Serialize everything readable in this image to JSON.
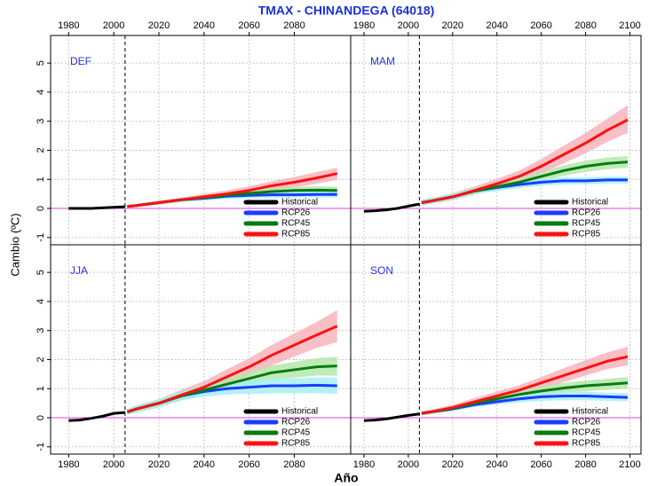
{
  "figure": {
    "title": "TMAX  - CHINANDEGA (64018)",
    "x_label": "Año",
    "y_label": "Cambio (ºC)"
  },
  "chart_data": [
    {
      "type": "line",
      "title": "DEF",
      "xlim": [
        1972,
        2105
      ],
      "ylim": [
        -1.25,
        5.95
      ],
      "xticks": [
        1980,
        2000,
        2020,
        2040,
        2060,
        2080
      ],
      "yticks": [
        -1,
        0,
        1,
        2,
        3,
        4,
        5
      ],
      "x_axis_side": "top",
      "show_ytick_labels": true,
      "grid": true,
      "hline": 0,
      "vline": 2005,
      "legend": "bottomright",
      "series": [
        {
          "name": "Historical",
          "color": "#000000",
          "x": [
            1980,
            1985,
            1990,
            1995,
            2000,
            2005
          ],
          "values": [
            0,
            0,
            0,
            0.02,
            0.04,
            0.06
          ]
        },
        {
          "name": "RCP26",
          "color": "#1a3cff",
          "band_color": "#a6eef2",
          "x": [
            2006,
            2010,
            2020,
            2030,
            2040,
            2050,
            2060,
            2070,
            2080,
            2090,
            2099
          ],
          "values": [
            0.07,
            0.1,
            0.2,
            0.3,
            0.35,
            0.42,
            0.45,
            0.47,
            0.47,
            0.48,
            0.48
          ],
          "lower": [
            0.03,
            0.05,
            0.14,
            0.23,
            0.27,
            0.33,
            0.35,
            0.37,
            0.37,
            0.38,
            0.38
          ],
          "upper": [
            0.11,
            0.15,
            0.26,
            0.37,
            0.43,
            0.51,
            0.55,
            0.57,
            0.57,
            0.58,
            0.58
          ]
        },
        {
          "name": "RCP45",
          "color": "#0a7a12",
          "band_color": "#b4e8aa",
          "x": [
            2006,
            2010,
            2020,
            2030,
            2040,
            2050,
            2060,
            2070,
            2080,
            2090,
            2099
          ],
          "values": [
            0.07,
            0.1,
            0.2,
            0.3,
            0.38,
            0.45,
            0.52,
            0.58,
            0.62,
            0.63,
            0.62
          ],
          "lower": [
            0.03,
            0.05,
            0.14,
            0.23,
            0.3,
            0.36,
            0.42,
            0.47,
            0.5,
            0.51,
            0.5
          ],
          "upper": [
            0.11,
            0.15,
            0.26,
            0.37,
            0.46,
            0.55,
            0.62,
            0.69,
            0.74,
            0.76,
            0.75
          ]
        },
        {
          "name": "RCP85",
          "color": "#ff1010",
          "band_color": "#f7b4bc",
          "x": [
            2006,
            2010,
            2020,
            2030,
            2040,
            2050,
            2060,
            2070,
            2080,
            2090,
            2099
          ],
          "values": [
            0.07,
            0.1,
            0.2,
            0.3,
            0.4,
            0.5,
            0.62,
            0.78,
            0.9,
            1.05,
            1.2
          ],
          "lower": [
            0.03,
            0.05,
            0.13,
            0.22,
            0.3,
            0.38,
            0.48,
            0.62,
            0.72,
            0.85,
            0.98
          ],
          "upper": [
            0.11,
            0.15,
            0.27,
            0.38,
            0.5,
            0.62,
            0.76,
            0.94,
            1.08,
            1.25,
            1.4
          ]
        }
      ]
    },
    {
      "type": "line",
      "title": "MAM",
      "xlim": [
        1974,
        2105
      ],
      "ylim": [
        -1.25,
        5.95
      ],
      "xticks": [
        1980,
        2000,
        2020,
        2040,
        2060,
        2080,
        2100
      ],
      "yticks": [
        -1,
        0,
        1,
        2,
        3,
        4,
        5
      ],
      "x_axis_side": "top",
      "show_ytick_labels": false,
      "grid": true,
      "hline": 0,
      "vline": 2005,
      "legend": "bottomright",
      "series": [
        {
          "name": "Historical",
          "color": "#000000",
          "x": [
            1980,
            1985,
            1990,
            1995,
            2000,
            2005
          ],
          "values": [
            -0.1,
            -0.08,
            -0.05,
            0,
            0.08,
            0.15
          ]
        },
        {
          "name": "RCP26",
          "color": "#1a3cff",
          "band_color": "#a6eef2",
          "x": [
            2006,
            2010,
            2020,
            2030,
            2040,
            2050,
            2060,
            2070,
            2080,
            2090,
            2099
          ],
          "values": [
            0.2,
            0.25,
            0.4,
            0.6,
            0.72,
            0.82,
            0.9,
            0.95,
            0.95,
            0.98,
            0.98
          ],
          "lower": [
            0.1,
            0.15,
            0.3,
            0.5,
            0.6,
            0.7,
            0.78,
            0.83,
            0.83,
            0.86,
            0.86
          ],
          "upper": [
            0.3,
            0.35,
            0.5,
            0.7,
            0.84,
            0.94,
            1.02,
            1.07,
            1.07,
            1.1,
            1.1
          ]
        },
        {
          "name": "RCP45",
          "color": "#0a7a12",
          "band_color": "#b4e8aa",
          "x": [
            2006,
            2010,
            2020,
            2030,
            2040,
            2050,
            2060,
            2070,
            2080,
            2090,
            2099
          ],
          "values": [
            0.2,
            0.25,
            0.4,
            0.6,
            0.75,
            0.9,
            1.1,
            1.3,
            1.45,
            1.55,
            1.6
          ],
          "lower": [
            0.1,
            0.15,
            0.3,
            0.5,
            0.62,
            0.76,
            0.94,
            1.12,
            1.26,
            1.35,
            1.4
          ],
          "upper": [
            0.3,
            0.35,
            0.5,
            0.7,
            0.88,
            1.04,
            1.26,
            1.48,
            1.64,
            1.75,
            1.8
          ]
        },
        {
          "name": "RCP85",
          "color": "#ff1010",
          "band_color": "#f7b4bc",
          "x": [
            2006,
            2010,
            2020,
            2030,
            2040,
            2050,
            2060,
            2070,
            2080,
            2090,
            2099
          ],
          "values": [
            0.2,
            0.25,
            0.4,
            0.62,
            0.85,
            1.1,
            1.45,
            1.85,
            2.25,
            2.7,
            3.05
          ],
          "lower": [
            0.1,
            0.15,
            0.28,
            0.48,
            0.68,
            0.9,
            1.2,
            1.55,
            1.9,
            2.3,
            2.6
          ],
          "upper": [
            0.3,
            0.35,
            0.52,
            0.76,
            1.02,
            1.3,
            1.7,
            2.15,
            2.6,
            3.1,
            3.55
          ]
        }
      ]
    },
    {
      "type": "line",
      "title": "JJA",
      "xlim": [
        1972,
        2105
      ],
      "ylim": [
        -1.25,
        5.95
      ],
      "xticks": [
        1980,
        2000,
        2020,
        2040,
        2060,
        2080
      ],
      "yticks": [
        -1,
        0,
        1,
        2,
        3,
        4,
        5
      ],
      "x_axis_side": "bottom",
      "show_ytick_labels": true,
      "grid": true,
      "hline": 0,
      "vline": 2005,
      "legend": "bottomright",
      "series": [
        {
          "name": "Historical",
          "color": "#000000",
          "x": [
            1980,
            1985,
            1990,
            1995,
            2000,
            2005
          ],
          "values": [
            -0.1,
            -0.08,
            -0.02,
            0.05,
            0.15,
            0.18
          ]
        },
        {
          "name": "RCP26",
          "color": "#1a3cff",
          "band_color": "#a6eef2",
          "x": [
            2006,
            2010,
            2020,
            2030,
            2040,
            2050,
            2060,
            2070,
            2080,
            2090,
            2099
          ],
          "values": [
            0.2,
            0.3,
            0.5,
            0.75,
            0.9,
            1.0,
            1.05,
            1.1,
            1.1,
            1.12,
            1.1
          ],
          "lower": [
            0.1,
            0.18,
            0.36,
            0.6,
            0.72,
            0.8,
            0.82,
            0.84,
            0.84,
            0.85,
            0.82
          ],
          "upper": [
            0.3,
            0.42,
            0.64,
            0.9,
            1.08,
            1.2,
            1.28,
            1.36,
            1.36,
            1.39,
            1.38
          ]
        },
        {
          "name": "RCP45",
          "color": "#0a7a12",
          "band_color": "#b4e8aa",
          "x": [
            2006,
            2010,
            2020,
            2030,
            2040,
            2050,
            2060,
            2070,
            2080,
            2090,
            2099
          ],
          "values": [
            0.2,
            0.3,
            0.5,
            0.75,
            0.95,
            1.15,
            1.35,
            1.55,
            1.65,
            1.75,
            1.78
          ],
          "lower": [
            0.1,
            0.18,
            0.36,
            0.6,
            0.78,
            0.95,
            1.12,
            1.3,
            1.38,
            1.45,
            1.45
          ],
          "upper": [
            0.3,
            0.42,
            0.64,
            0.9,
            1.12,
            1.35,
            1.58,
            1.8,
            1.92,
            2.05,
            2.1
          ]
        },
        {
          "name": "RCP85",
          "color": "#ff1010",
          "band_color": "#f7b4bc",
          "x": [
            2006,
            2010,
            2020,
            2030,
            2040,
            2050,
            2060,
            2070,
            2080,
            2090,
            2099
          ],
          "values": [
            0.2,
            0.3,
            0.5,
            0.78,
            1.05,
            1.4,
            1.75,
            2.15,
            2.5,
            2.85,
            3.15
          ],
          "lower": [
            0.1,
            0.18,
            0.36,
            0.6,
            0.84,
            1.14,
            1.45,
            1.8,
            2.1,
            2.4,
            2.6
          ],
          "upper": [
            0.3,
            0.42,
            0.64,
            0.96,
            1.26,
            1.66,
            2.05,
            2.5,
            2.9,
            3.3,
            3.7
          ]
        }
      ]
    },
    {
      "type": "line",
      "title": "SON",
      "xlim": [
        1974,
        2105
      ],
      "ylim": [
        -1.25,
        5.95
      ],
      "xticks": [
        1980,
        2000,
        2020,
        2040,
        2060,
        2080,
        2100
      ],
      "yticks": [
        -1,
        0,
        1,
        2,
        3,
        4,
        5
      ],
      "x_axis_side": "bottom",
      "show_ytick_labels": false,
      "grid": true,
      "hline": 0,
      "vline": 2005,
      "legend": "bottomright",
      "series": [
        {
          "name": "Historical",
          "color": "#000000",
          "x": [
            1980,
            1985,
            1990,
            1995,
            2000,
            2005
          ],
          "values": [
            -0.1,
            -0.08,
            -0.04,
            0.02,
            0.08,
            0.13
          ]
        },
        {
          "name": "RCP26",
          "color": "#1a3cff",
          "band_color": "#a6eef2",
          "x": [
            2006,
            2010,
            2020,
            2030,
            2040,
            2050,
            2060,
            2070,
            2080,
            2090,
            2099
          ],
          "values": [
            0.15,
            0.2,
            0.3,
            0.45,
            0.55,
            0.65,
            0.72,
            0.75,
            0.75,
            0.72,
            0.7
          ],
          "lower": [
            0.08,
            0.12,
            0.24,
            0.37,
            0.45,
            0.53,
            0.58,
            0.6,
            0.6,
            0.58,
            0.56
          ],
          "upper": [
            0.22,
            0.28,
            0.36,
            0.53,
            0.65,
            0.77,
            0.86,
            0.9,
            0.9,
            0.86,
            0.84
          ]
        },
        {
          "name": "RCP45",
          "color": "#0a7a12",
          "band_color": "#b4e8aa",
          "x": [
            2006,
            2010,
            2020,
            2030,
            2040,
            2050,
            2060,
            2070,
            2080,
            2090,
            2099
          ],
          "values": [
            0.15,
            0.2,
            0.32,
            0.5,
            0.65,
            0.8,
            0.92,
            1.02,
            1.1,
            1.15,
            1.2
          ],
          "lower": [
            0.08,
            0.12,
            0.24,
            0.4,
            0.53,
            0.66,
            0.76,
            0.85,
            0.92,
            0.96,
            1.0
          ],
          "upper": [
            0.22,
            0.28,
            0.4,
            0.6,
            0.77,
            0.94,
            1.08,
            1.2,
            1.28,
            1.34,
            1.4
          ]
        },
        {
          "name": "RCP85",
          "color": "#ff1010",
          "band_color": "#f7b4bc",
          "x": [
            2006,
            2010,
            2020,
            2030,
            2040,
            2050,
            2060,
            2070,
            2080,
            2090,
            2099
          ],
          "values": [
            0.15,
            0.2,
            0.35,
            0.55,
            0.75,
            0.95,
            1.2,
            1.45,
            1.7,
            1.95,
            2.1
          ],
          "lower": [
            0.08,
            0.12,
            0.25,
            0.42,
            0.6,
            0.78,
            1.0,
            1.22,
            1.45,
            1.68,
            1.8
          ],
          "upper": [
            0.22,
            0.28,
            0.45,
            0.68,
            0.9,
            1.12,
            1.4,
            1.7,
            1.98,
            2.25,
            2.45
          ]
        }
      ]
    }
  ]
}
